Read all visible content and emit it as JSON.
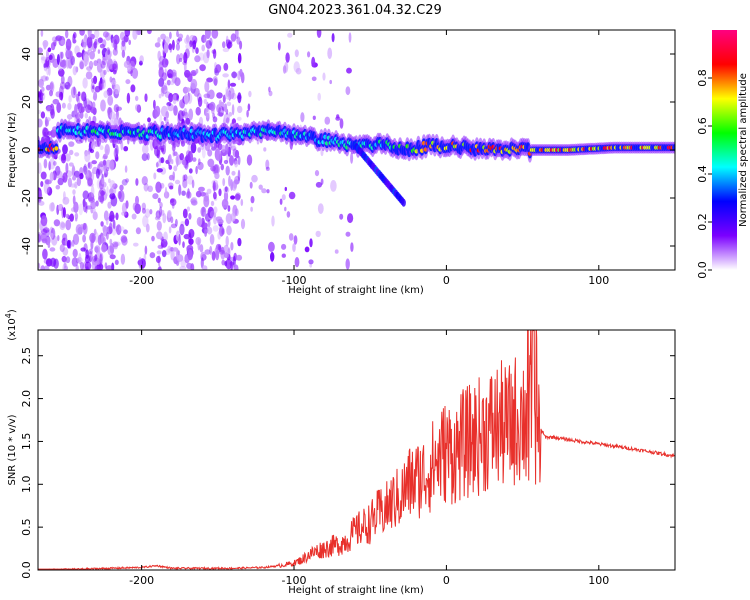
{
  "title": "GN04.2023.361.04.32.C29",
  "chart_data": [
    {
      "type": "heatmap",
      "xlabel": "Height of straight line (km)",
      "ylabel": "Frequency (Hz)",
      "xlim": [
        -268,
        150
      ],
      "ylim": [
        -50,
        50
      ],
      "x_ticks": [
        -200,
        -100,
        0,
        100
      ],
      "y_ticks": [
        40,
        20,
        0,
        -20,
        -40
      ],
      "colorbar": {
        "label": "Normalized spectral amplitude",
        "range": [
          0.0,
          1.0
        ],
        "ticks": [
          0.0,
          0.2,
          0.4,
          0.6,
          0.8
        ],
        "colors": [
          "#ffffff",
          "#7b00ff",
          "#0000ff",
          "#00ffff",
          "#00ff00",
          "#ffff00",
          "#ff0000",
          "#ff0080"
        ]
      },
      "ridge": [
        {
          "x": -255,
          "y": 8,
          "amp": 0.5
        },
        {
          "x": -230,
          "y": 8,
          "amp": 0.55
        },
        {
          "x": -200,
          "y": 7,
          "amp": 0.55
        },
        {
          "x": -175,
          "y": 7,
          "amp": 0.4
        },
        {
          "x": -150,
          "y": 6,
          "amp": 0.45
        },
        {
          "x": -120,
          "y": 8,
          "amp": 0.5
        },
        {
          "x": -100,
          "y": 6,
          "amp": 0.5
        },
        {
          "x": -80,
          "y": 4,
          "amp": 0.5
        },
        {
          "x": -60,
          "y": 2,
          "amp": 0.5
        },
        {
          "x": -40,
          "y": 2,
          "amp": 0.5
        },
        {
          "x": -25,
          "y": 0,
          "amp": 0.75
        },
        {
          "x": -10,
          "y": 2,
          "amp": 0.8
        },
        {
          "x": 10,
          "y": 1,
          "amp": 0.85
        },
        {
          "x": 30,
          "y": 0,
          "amp": 0.85
        },
        {
          "x": 55,
          "y": 0,
          "amp": 0.9
        },
        {
          "x": 80,
          "y": 0,
          "amp": 0.85
        },
        {
          "x": 110,
          "y": 1,
          "amp": 0.88
        },
        {
          "x": 150,
          "y": 1,
          "amp": 0.9
        }
      ]
    },
    {
      "type": "line",
      "xlabel": "Height of straight line (km)",
      "ylabel": "SNR (10 * v/v)",
      "y_multiplier": "(x10",
      "y_multiplier_exp": "4",
      "xlim": [
        -268,
        150
      ],
      "ylim": [
        0,
        2.8
      ],
      "x_ticks": [
        -200,
        -100,
        0,
        100
      ],
      "y_ticks": [
        0.0,
        0.5,
        1.0,
        1.5,
        2.0,
        2.5
      ],
      "series": [
        {
          "color": "#e8302b",
          "x": [
            -268,
            -240,
            -220,
            -200,
            -190,
            -180,
            -160,
            -140,
            -120,
            -110,
            -100,
            -95,
            -90,
            -85,
            -80,
            -75,
            -70,
            -65,
            -60,
            -55,
            -50,
            -45,
            -40,
            -35,
            -30,
            -25,
            -20,
            -15,
            -10,
            -5,
            0,
            5,
            10,
            15,
            20,
            25,
            30,
            35,
            40,
            45,
            50,
            55,
            58,
            60,
            65,
            70,
            80,
            100,
            120,
            150
          ],
          "y": [
            0.0,
            0.01,
            0.02,
            0.03,
            0.05,
            0.02,
            0.02,
            0.02,
            0.03,
            0.05,
            0.08,
            0.12,
            0.18,
            0.22,
            0.25,
            0.28,
            0.3,
            0.35,
            0.45,
            0.5,
            0.55,
            0.65,
            0.7,
            0.8,
            0.85,
            1.0,
            1.05,
            1.1,
            1.2,
            1.3,
            1.4,
            1.35,
            1.45,
            1.5,
            1.55,
            1.6,
            1.65,
            1.7,
            1.65,
            1.75,
            1.8,
            1.85,
            2.2,
            1.7,
            1.55,
            1.55,
            1.52,
            1.47,
            1.42,
            1.33
          ]
        }
      ]
    }
  ]
}
